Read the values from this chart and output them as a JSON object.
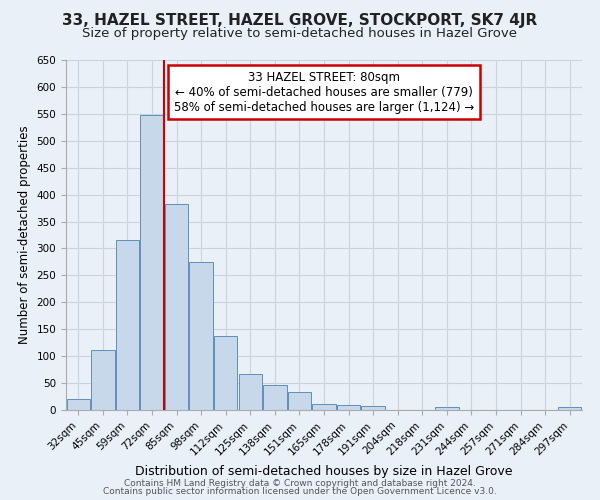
{
  "title1": "33, HAZEL STREET, HAZEL GROVE, STOCKPORT, SK7 4JR",
  "title2": "Size of property relative to semi-detached houses in Hazel Grove",
  "xlabel": "Distribution of semi-detached houses by size in Hazel Grove",
  "ylabel": "Number of semi-detached properties",
  "categories": [
    "32sqm",
    "45sqm",
    "59sqm",
    "72sqm",
    "85sqm",
    "98sqm",
    "112sqm",
    "125sqm",
    "138sqm",
    "151sqm",
    "165sqm",
    "178sqm",
    "191sqm",
    "204sqm",
    "218sqm",
    "231sqm",
    "244sqm",
    "257sqm",
    "271sqm",
    "284sqm",
    "297sqm"
  ],
  "values": [
    20,
    112,
    315,
    548,
    383,
    275,
    138,
    67,
    46,
    33,
    12,
    10,
    8,
    0,
    0,
    5,
    0,
    0,
    0,
    0,
    5
  ],
  "bar_color": "#c8d8eb",
  "bar_edge_color": "#6090b8",
  "red_line_x": 3.5,
  "annotation_line1": "33 HAZEL STREET: 80sqm",
  "annotation_line2": "← 40% of semi-detached houses are smaller (779)",
  "annotation_line3": "58% of semi-detached houses are larger (1,124) →",
  "annotation_box_color": "#ffffff",
  "annotation_box_edge": "#cc0000",
  "ylim": [
    0,
    650
  ],
  "yticks": [
    0,
    50,
    100,
    150,
    200,
    250,
    300,
    350,
    400,
    450,
    500,
    550,
    600,
    650
  ],
  "grid_color": "#c8d4e0",
  "bg_color": "#eaf0f8",
  "plot_bg": "#eaf0f8",
  "footer1": "Contains HM Land Registry data © Crown copyright and database right 2024.",
  "footer2": "Contains public sector information licensed under the Open Government Licence v3.0.",
  "title1_fontsize": 11,
  "title2_fontsize": 9.5,
  "xlabel_fontsize": 9,
  "ylabel_fontsize": 8.5,
  "tick_fontsize": 7.5,
  "footer_fontsize": 6.5,
  "ann_fontsize": 8.5
}
